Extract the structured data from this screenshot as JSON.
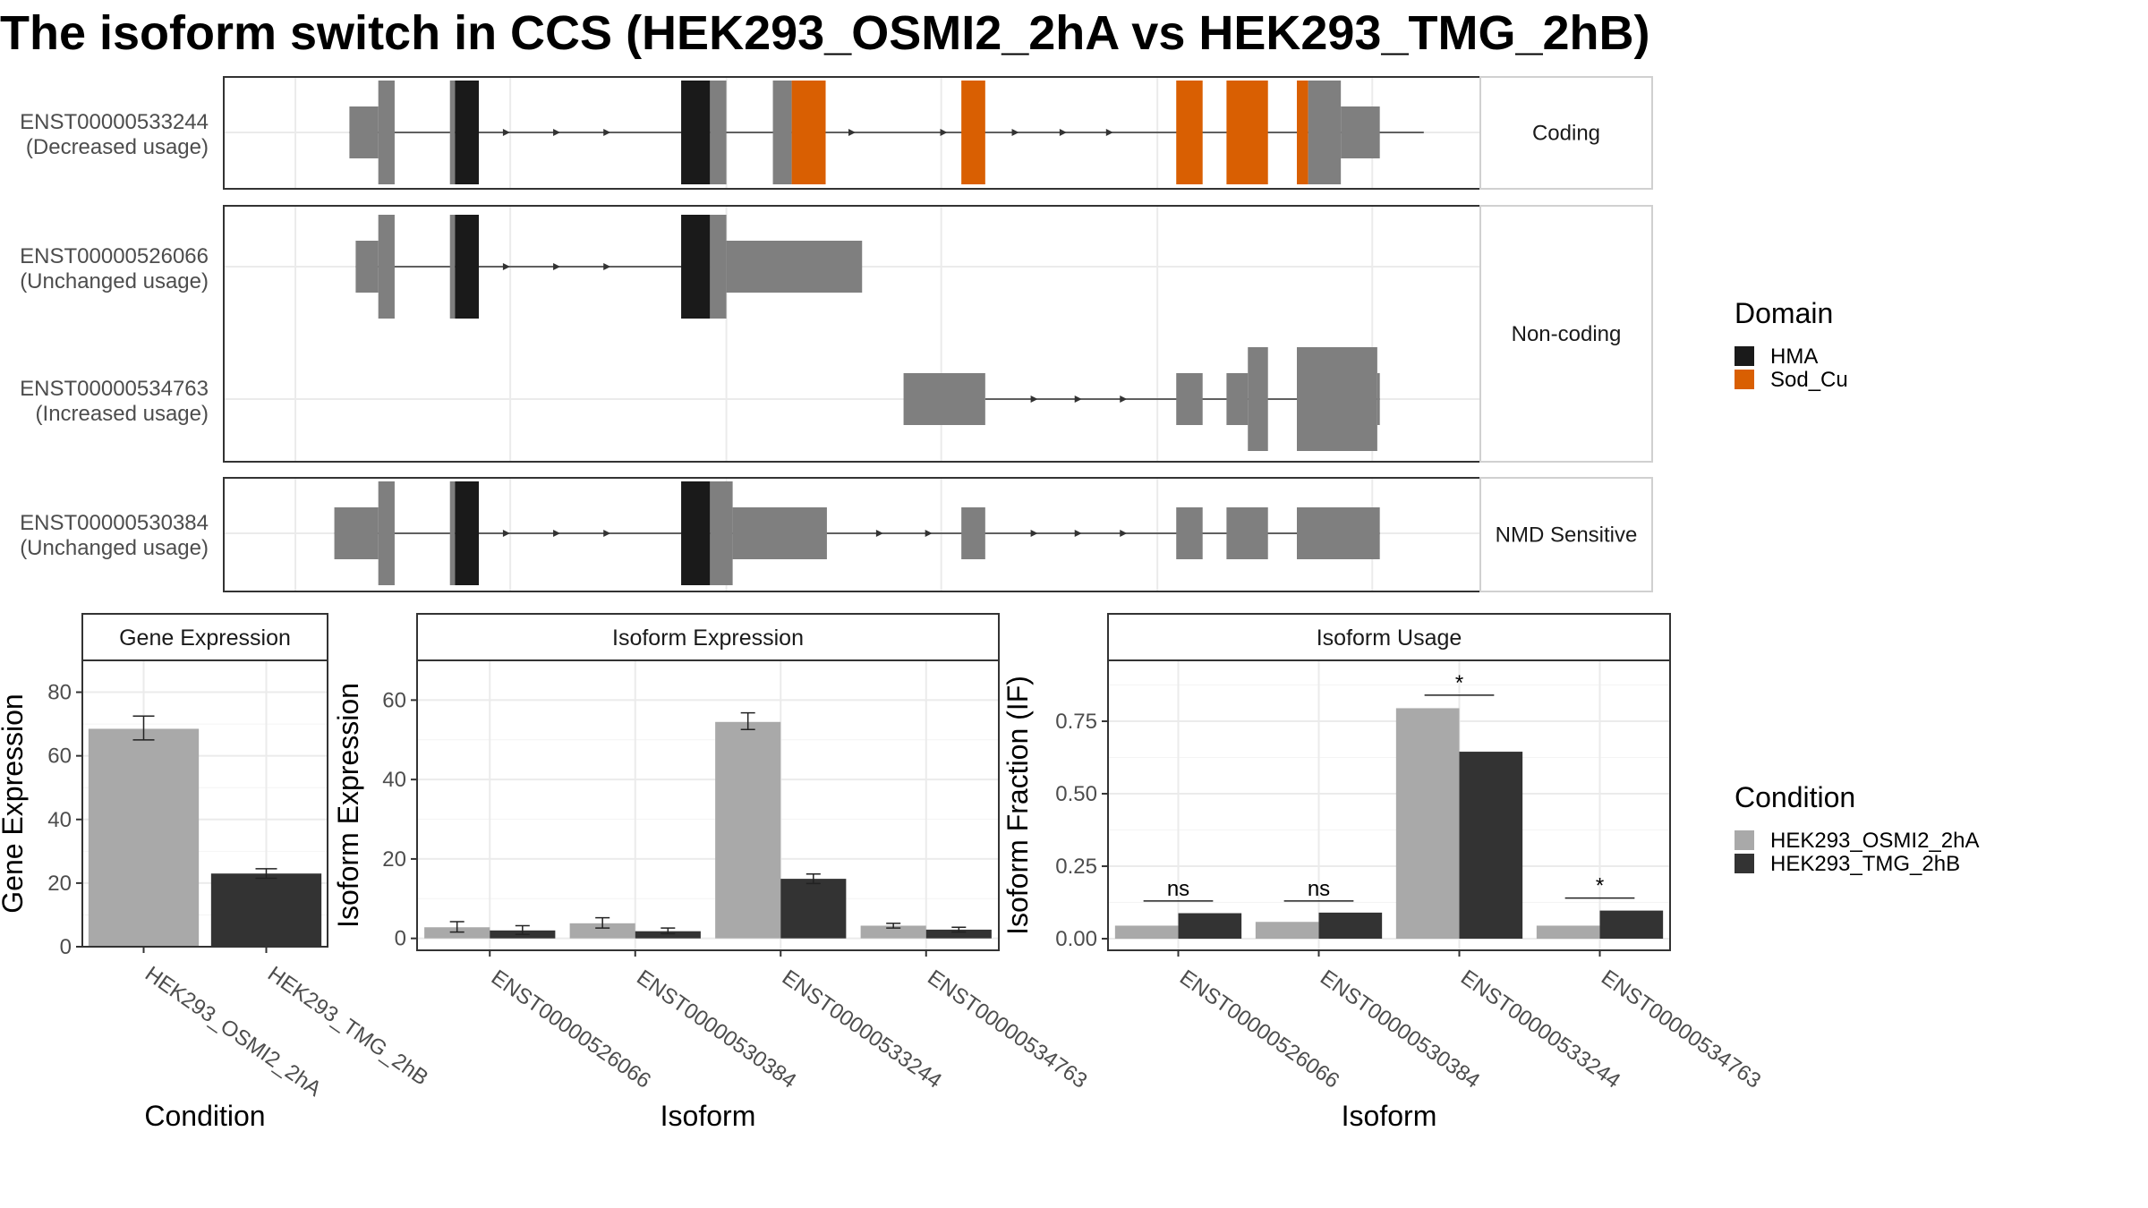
{
  "title": "The isoform switch in CCS (HEK293_OSMI2_2hA vs HEK293_TMG_2hB)",
  "colors": {
    "hma": "#1a1a1a",
    "sod_cu": "#d95f02",
    "exon": "#7f7f7f",
    "cond_a": "#a9a9a9",
    "cond_b": "#333333",
    "grid": "#ebebeb",
    "strip_bg": "#ffffff",
    "frame": "#333333"
  },
  "structure": {
    "groups": [
      {
        "label": "Coding",
        "tracks": [
          "ENST00000533244"
        ]
      },
      {
        "label": "Non-coding",
        "tracks": [
          "ENST00000526066",
          "ENST00000534763"
        ]
      },
      {
        "label": "NMD Sensitive",
        "tracks": [
          "ENST00000530384"
        ]
      }
    ],
    "tracks": [
      {
        "id": "ENST00000533244",
        "usage": "(Decreased usage)",
        "intron": [
          100,
          955
        ],
        "arrows": [
          225,
          265,
          305,
          500,
          573,
          630,
          668,
          705
        ],
        "exons": [
          {
            "s": 100,
            "e": 123,
            "h": "half",
            "f": "exon"
          },
          {
            "s": 123,
            "e": 136,
            "h": "full",
            "f": "exon"
          },
          {
            "s": 180,
            "e": 184,
            "h": "full",
            "f": "exon"
          },
          {
            "s": 184,
            "e": 203,
            "h": "full",
            "f": "hma"
          },
          {
            "s": 364,
            "e": 387,
            "h": "full",
            "f": "hma"
          },
          {
            "s": 387,
            "e": 400,
            "h": "full",
            "f": "exon"
          },
          {
            "s": 437,
            "e": 452,
            "h": "full",
            "f": "exon"
          },
          {
            "s": 452,
            "e": 479,
            "h": "full",
            "f": "sod_cu"
          },
          {
            "s": 587,
            "e": 606,
            "h": "full",
            "f": "sod_cu"
          },
          {
            "s": 758,
            "e": 779,
            "h": "full",
            "f": "sod_cu"
          },
          {
            "s": 798,
            "e": 831,
            "h": "full",
            "f": "sod_cu"
          },
          {
            "s": 854,
            "e": 863,
            "h": "full",
            "f": "sod_cu"
          },
          {
            "s": 863,
            "e": 889,
            "h": "full",
            "f": "exon"
          },
          {
            "s": 889,
            "e": 920,
            "h": "half",
            "f": "exon"
          }
        ]
      },
      {
        "id": "ENST00000526066",
        "usage": "(Unchanged usage)",
        "intron": [
          105,
          365
        ],
        "arrows": [
          225,
          265,
          305
        ],
        "exons": [
          {
            "s": 105,
            "e": 123,
            "h": "half",
            "f": "exon"
          },
          {
            "s": 123,
            "e": 136,
            "h": "full",
            "f": "exon"
          },
          {
            "s": 180,
            "e": 184,
            "h": "full",
            "f": "exon"
          },
          {
            "s": 184,
            "e": 203,
            "h": "full",
            "f": "hma"
          },
          {
            "s": 364,
            "e": 387,
            "h": "full",
            "f": "hma"
          },
          {
            "s": 387,
            "e": 400,
            "h": "full",
            "f": "exon"
          },
          {
            "s": 400,
            "e": 508,
            "h": "half",
            "f": "exon"
          }
        ]
      },
      {
        "id": "ENST00000534763",
        "usage": "(Increased usage)",
        "intron": [
          606,
          920
        ],
        "arrows": [
          645,
          680,
          716
        ],
        "exons": [
          {
            "s": 541,
            "e": 606,
            "h": "half",
            "f": "exon"
          },
          {
            "s": 758,
            "e": 779,
            "h": "half",
            "f": "exon"
          },
          {
            "s": 798,
            "e": 815,
            "h": "half",
            "f": "exon"
          },
          {
            "s": 815,
            "e": 831,
            "h": "full",
            "f": "exon"
          },
          {
            "s": 854,
            "e": 918,
            "h": "full",
            "f": "exon"
          },
          {
            "s": 918,
            "e": 920,
            "h": "half",
            "f": "exon"
          }
        ]
      },
      {
        "id": "ENST00000530384",
        "usage": "(Unchanged usage)",
        "intron": [
          88,
          920
        ],
        "arrows": [
          225,
          265,
          305,
          522,
          561,
          645,
          680,
          716
        ],
        "exons": [
          {
            "s": 88,
            "e": 123,
            "h": "half",
            "f": "exon"
          },
          {
            "s": 123,
            "e": 136,
            "h": "full",
            "f": "exon"
          },
          {
            "s": 180,
            "e": 184,
            "h": "full",
            "f": "exon"
          },
          {
            "s": 184,
            "e": 203,
            "h": "full",
            "f": "hma"
          },
          {
            "s": 364,
            "e": 387,
            "h": "full",
            "f": "hma"
          },
          {
            "s": 387,
            "e": 405,
            "h": "full",
            "f": "exon"
          },
          {
            "s": 405,
            "e": 480,
            "h": "half",
            "f": "exon"
          },
          {
            "s": 587,
            "e": 606,
            "h": "half",
            "f": "exon"
          },
          {
            "s": 758,
            "e": 779,
            "h": "half",
            "f": "exon"
          },
          {
            "s": 798,
            "e": 831,
            "h": "half",
            "f": "exon"
          },
          {
            "s": 854,
            "e": 920,
            "h": "half",
            "f": "exon"
          }
        ]
      }
    ]
  },
  "legends": {
    "domain": {
      "title": "Domain",
      "items": [
        {
          "label": "HMA",
          "color": "#1a1a1a"
        },
        {
          "label": "Sod_Cu",
          "color": "#d95f02"
        }
      ]
    },
    "condition": {
      "title": "Condition",
      "items": [
        {
          "label": "HEK293_OSMI2_2hA",
          "color": "#a9a9a9"
        },
        {
          "label": "HEK293_TMG_2hB",
          "color": "#333333"
        }
      ]
    }
  },
  "chart_data": [
    {
      "type": "bar",
      "title": "Gene Expression",
      "xlabel": "Condition",
      "ylabel": "Gene Expression",
      "categories": [
        "HEK293_OSMI2_2hA",
        "HEK293_TMG_2hB"
      ],
      "values": [
        68.5,
        23
      ],
      "errors": [
        [
          65,
          72.5
        ],
        [
          21.5,
          24.5
        ]
      ],
      "ylim": [
        0,
        90
      ],
      "yticks": [
        "0",
        "20",
        "40",
        "60",
        "80"
      ]
    },
    {
      "type": "bar",
      "title": "Isoform Expression",
      "xlabel": "Isoform",
      "ylabel": "Isoform Expression",
      "categories": [
        "ENST00000526066",
        "ENST00000530384",
        "ENST00000533244",
        "ENST00000534763"
      ],
      "series": [
        {
          "name": "HEK293_OSMI2_2hA",
          "values": [
            2.8,
            3.8,
            54.5,
            3.2
          ],
          "errors": [
            [
              1.6,
              4.2
            ],
            [
              2.6,
              5.2
            ],
            [
              52.6,
              56.8
            ],
            [
              2.6,
              3.8
            ]
          ]
        },
        {
          "name": "HEK293_TMG_2hB",
          "values": [
            2,
            1.8,
            15,
            2.2
          ],
          "errors": [
            [
              1,
              3.2
            ],
            [
              1.2,
              2.6
            ],
            [
              13.8,
              16.2
            ],
            [
              1.6,
              2.8
            ]
          ]
        }
      ],
      "ylim": [
        -3,
        70
      ],
      "yticks": [
        "0",
        "20",
        "40",
        "60"
      ]
    },
    {
      "type": "bar",
      "title": "Isoform Usage",
      "xlabel": "Isoform",
      "ylabel": "Isoform Fraction (IF)",
      "categories": [
        "ENST00000526066",
        "ENST00000530384",
        "ENST00000533244",
        "ENST00000534763"
      ],
      "series": [
        {
          "name": "HEK293_OSMI2_2hA",
          "values": [
            0.045,
            0.058,
            0.795,
            0.045
          ]
        },
        {
          "name": "HEK293_TMG_2hB",
          "values": [
            0.088,
            0.09,
            0.645,
            0.097
          ]
        }
      ],
      "significance": [
        "ns",
        "ns",
        "*",
        "*"
      ],
      "sig_heights": [
        0.13,
        0.13,
        0.84,
        0.14
      ],
      "ylim": [
        -0.04,
        0.96
      ],
      "yticks": [
        "0.00",
        "0.25",
        "0.50",
        "0.75"
      ]
    }
  ]
}
